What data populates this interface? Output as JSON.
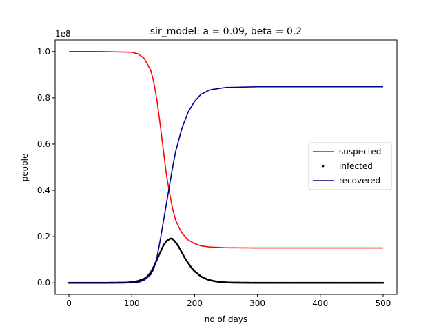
{
  "chart_data": {
    "type": "line",
    "title": "sir_model: a = 0.09, beta = 0.2",
    "xlabel": "no of days",
    "ylabel": "people",
    "y_offset_label": "1e8",
    "xlim": [
      -22,
      522
    ],
    "ylim": [
      -0.05,
      1.05
    ],
    "x_ticks": [
      0,
      100,
      200,
      300,
      400,
      500
    ],
    "x_tick_labels": [
      "0",
      "100",
      "200",
      "300",
      "400",
      "500"
    ],
    "y_ticks": [
      0.0,
      0.2,
      0.4,
      0.6,
      0.8,
      1.0
    ],
    "y_tick_labels": [
      "0.0",
      "0.2",
      "0.4",
      "0.6",
      "0.8",
      "1.0"
    ],
    "grid": false,
    "legend_position": "center-right",
    "series": [
      {
        "name": "suspected",
        "style": "line",
        "color": "#ff0000",
        "x": [
          0,
          50,
          100,
          110,
          120,
          130,
          135,
          140,
          145,
          150,
          155,
          160,
          165,
          170,
          175,
          180,
          190,
          200,
          210,
          225,
          250,
          300,
          400,
          500
        ],
        "y": [
          1.0,
          1.0,
          0.997,
          0.99,
          0.97,
          0.92,
          0.87,
          0.79,
          0.69,
          0.58,
          0.47,
          0.39,
          0.32,
          0.27,
          0.24,
          0.215,
          0.185,
          0.17,
          0.16,
          0.155,
          0.152,
          0.151,
          0.151,
          0.151
        ]
      },
      {
        "name": "infected",
        "style": "points",
        "color": "#000000",
        "x": [
          0,
          50,
          90,
          100,
          110,
          120,
          125,
          130,
          135,
          140,
          145,
          150,
          155,
          160,
          163,
          165,
          170,
          175,
          180,
          185,
          190,
          195,
          200,
          210,
          220,
          230,
          240,
          250,
          260,
          300,
          400,
          500
        ],
        "y": [
          0.0,
          0.0,
          0.001,
          0.003,
          0.008,
          0.018,
          0.028,
          0.045,
          0.07,
          0.1,
          0.13,
          0.16,
          0.18,
          0.19,
          0.192,
          0.19,
          0.175,
          0.155,
          0.13,
          0.105,
          0.085,
          0.065,
          0.05,
          0.028,
          0.015,
          0.008,
          0.004,
          0.002,
          0.001,
          0.0,
          0.0,
          0.0
        ]
      },
      {
        "name": "recovered",
        "style": "line",
        "color": "#00008b",
        "x": [
          0,
          50,
          100,
          110,
          120,
          130,
          135,
          140,
          145,
          150,
          155,
          160,
          165,
          170,
          175,
          180,
          190,
          200,
          210,
          225,
          250,
          300,
          400,
          500
        ],
        "y": [
          0.0,
          0.0,
          0.0,
          0.002,
          0.012,
          0.035,
          0.06,
          0.11,
          0.18,
          0.26,
          0.34,
          0.42,
          0.5,
          0.57,
          0.62,
          0.67,
          0.74,
          0.785,
          0.815,
          0.835,
          0.845,
          0.848,
          0.848,
          0.848
        ]
      }
    ]
  }
}
